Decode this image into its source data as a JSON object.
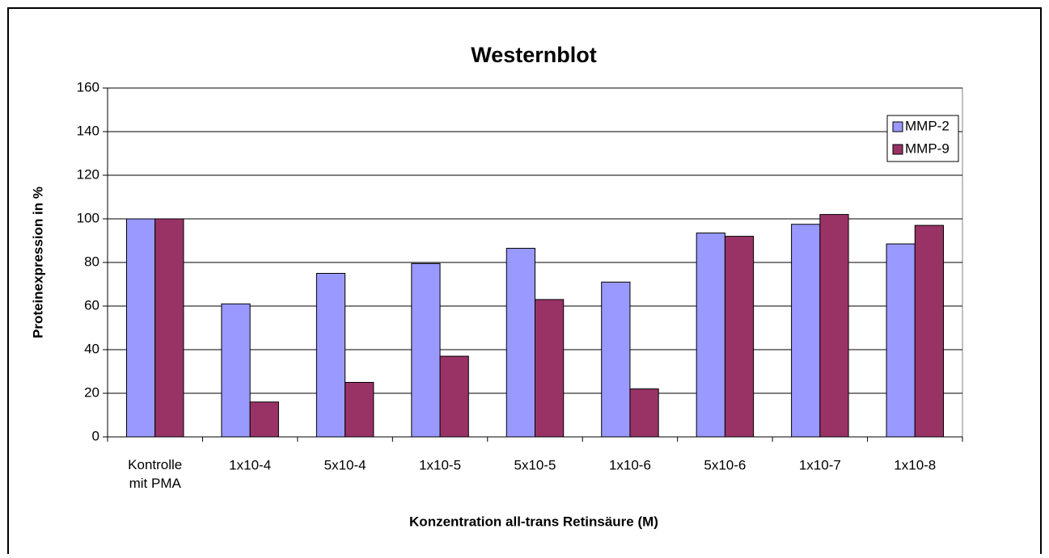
{
  "chart_data": {
    "type": "bar",
    "title": "Westernblot",
    "x_label": "Konzentration all-trans Retinsäure (M)",
    "y_label": "Proteinexpression in %",
    "categories": [
      "Kontrolle\nmit PMA",
      "1x10-4",
      "5x10-4",
      "1x10-5",
      "5x10-5",
      "1x10-6",
      "5x10-6",
      "1x10-7",
      "1x10-8"
    ],
    "series": [
      {
        "name": "MMP-2",
        "color": "#9999ff",
        "values": [
          100,
          61,
          75,
          79.5,
          86.5,
          71,
          93.5,
          97.5,
          88.5
        ]
      },
      {
        "name": "MMP-9",
        "color": "#993366",
        "values": [
          100,
          16,
          25,
          37,
          63,
          22,
          92,
          102,
          97
        ]
      }
    ],
    "ylim": [
      0,
      160
    ],
    "yticks": [
      0,
      20,
      40,
      60,
      80,
      100,
      120,
      140,
      160
    ],
    "grid": true,
    "legend": "upper right"
  }
}
